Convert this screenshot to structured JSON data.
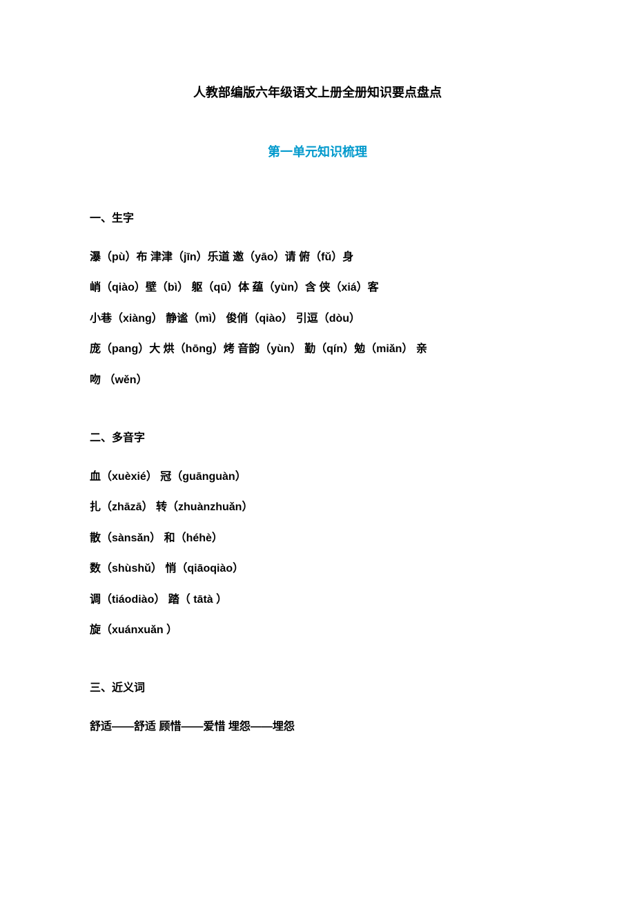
{
  "main_title": "人教部编版六年级语文上册全册知识要点盘点",
  "subtitle": "第一单元知识梳理",
  "section1": {
    "heading": "一、生字",
    "lines": [
      "瀑（pù）布  津津（jīn）乐道  邀（yāo）请  俯（fǔ）身",
      "峭（qiào）壁（bì）  躯（qū）体  蕴（yùn）含  侠（xiá）客",
      "小巷（xiàng）   静谧（mì）   俊俏（qiào）   引逗（dòu）",
      "庞（pang）大  烘（hōng）烤  音韵（yùn）   勤（qín）勉（miǎn）   亲",
      "吻  （wěn）"
    ]
  },
  "section2": {
    "heading": "二、多音字",
    "lines": [
      "血（xuèxié）   冠（guānguàn）",
      "扎（zhāzā）   转（zhuànzhuǎn）",
      "散（sànsǎn）   和（héhè）",
      "数（shùshǔ）   悄（qiāoqiào）",
      "调（tiáodiào）   踏（ tātà ）",
      "旋（xuánxuǎn ）"
    ]
  },
  "section3": {
    "heading": "三、近义词",
    "lines": [
      "舒适——舒适  顾惜——爱惜  埋怨——埋怨"
    ]
  }
}
